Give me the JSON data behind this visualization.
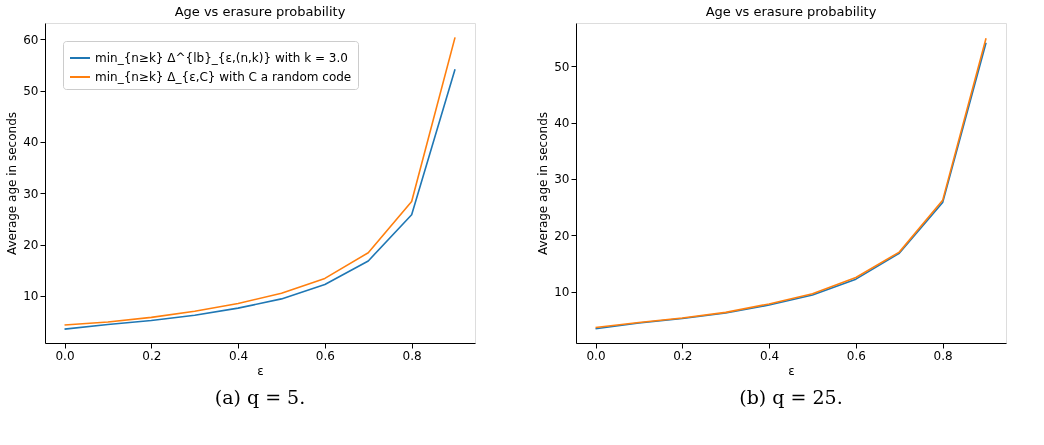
{
  "chart_data": [
    {
      "type": "line",
      "title": "Age vs erasure probability",
      "xlabel": "ε",
      "ylabel": "Average age in seconds",
      "x": [
        0.0,
        0.1,
        0.2,
        0.3,
        0.4,
        0.5,
        0.6,
        0.7,
        0.8,
        0.9
      ],
      "series": [
        {
          "name": "min_{n≥k} Δ^{lb}_{ε,(n,k)} with k = 3.0",
          "color": "#1f77b4",
          "values": [
            3.5,
            4.4,
            5.2,
            6.2,
            7.6,
            9.4,
            12.2,
            16.8,
            25.8,
            54.2
          ]
        },
        {
          "name": "min_{n≥k} Δ_{ε,C} with C a random code",
          "color": "#ff7f0e",
          "values": [
            4.3,
            4.9,
            5.8,
            7.0,
            8.5,
            10.5,
            13.4,
            18.4,
            28.4,
            60.4
          ]
        }
      ],
      "xlim": [
        -0.045,
        0.946
      ],
      "xticks": [
        {
          "value": 0,
          "label": "0.0"
        },
        0.2,
        0.4,
        0.6,
        0.8
      ],
      "ylim": [
        0.8,
        63.2
      ],
      "yticks": [
        10,
        20,
        30,
        40,
        50,
        60
      ],
      "legend": "top left",
      "grid": false,
      "annotations": [
        "(a) q = 5."
      ]
    },
    {
      "type": "line",
      "title": "Age vs erasure probability",
      "xlabel": "ε",
      "ylabel": "Average age in seconds",
      "x": [
        0.0,
        0.1,
        0.2,
        0.3,
        0.4,
        0.5,
        0.6,
        0.7,
        0.8,
        0.9
      ],
      "series": [
        {
          "name": "min_{n≥k} Δ^{lb}_{ε,(n,k)} with k = 3.0",
          "color": "#1f77b4",
          "values": [
            3.4,
            4.4,
            5.2,
            6.2,
            7.6,
            9.4,
            12.2,
            16.8,
            25.8,
            54.2
          ]
        },
        {
          "name": "min_{n≥k} Δ_{ε,C} with C a random code",
          "color": "#ff7f0e",
          "values": [
            3.6,
            4.5,
            5.3,
            6.3,
            7.8,
            9.6,
            12.5,
            17.0,
            26.2,
            55.0
          ]
        }
      ],
      "xlim": [
        -0.045,
        0.946
      ],
      "xticks": [
        {
          "value": 0,
          "label": "0.0"
        },
        0.2,
        0.4,
        0.6,
        0.8
      ],
      "ylim": [
        0.86,
        57.7
      ],
      "yticks": [
        10,
        20,
        30,
        40,
        50
      ],
      "legend": "top left",
      "grid": false,
      "annotations": [
        "(b) q = 25."
      ]
    }
  ]
}
